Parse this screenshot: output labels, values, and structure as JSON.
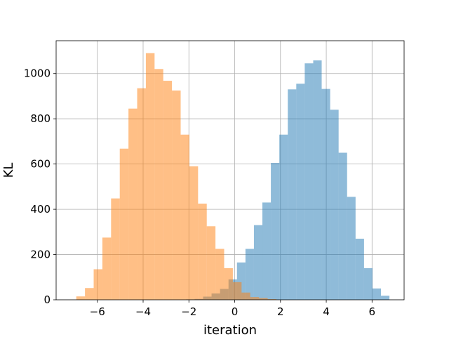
{
  "chart_data": {
    "type": "histogram",
    "title": "",
    "xlabel": "iteration",
    "ylabel": "KL",
    "xlim": [
      -7.8,
      7.4
    ],
    "ylim": [
      0,
      1145
    ],
    "xticks": [
      -6,
      -4,
      -2,
      0,
      2,
      4,
      6
    ],
    "yticks": [
      0,
      200,
      400,
      600,
      800,
      1000
    ],
    "grid": true,
    "legend": "none",
    "series": [
      {
        "color": "#1f77b4",
        "alpha": 0.5,
        "bins": [
          {
            "x0": -2.12,
            "x1": -1.75,
            "count": 2
          },
          {
            "x0": -1.75,
            "x1": -1.38,
            "count": 4
          },
          {
            "x0": -1.38,
            "x1": -1.01,
            "count": 14
          },
          {
            "x0": -1.01,
            "x1": -0.64,
            "count": 28
          },
          {
            "x0": -0.64,
            "x1": -0.27,
            "count": 48
          },
          {
            "x0": -0.27,
            "x1": 0.1,
            "count": 90
          },
          {
            "x0": 0.1,
            "x1": 0.47,
            "count": 165
          },
          {
            "x0": 0.47,
            "x1": 0.84,
            "count": 225
          },
          {
            "x0": 0.84,
            "x1": 1.21,
            "count": 330
          },
          {
            "x0": 1.21,
            "x1": 1.58,
            "count": 430
          },
          {
            "x0": 1.58,
            "x1": 1.95,
            "count": 605
          },
          {
            "x0": 1.95,
            "x1": 2.32,
            "count": 730
          },
          {
            "x0": 2.32,
            "x1": 2.69,
            "count": 930
          },
          {
            "x0": 2.69,
            "x1": 3.06,
            "count": 955
          },
          {
            "x0": 3.06,
            "x1": 3.43,
            "count": 1045
          },
          {
            "x0": 3.43,
            "x1": 3.8,
            "count": 1058
          },
          {
            "x0": 3.8,
            "x1": 4.17,
            "count": 932
          },
          {
            "x0": 4.17,
            "x1": 4.54,
            "count": 840
          },
          {
            "x0": 4.54,
            "x1": 4.91,
            "count": 650
          },
          {
            "x0": 4.91,
            "x1": 5.28,
            "count": 455
          },
          {
            "x0": 5.28,
            "x1": 5.65,
            "count": 270
          },
          {
            "x0": 5.65,
            "x1": 6.02,
            "count": 140
          },
          {
            "x0": 6.02,
            "x1": 6.39,
            "count": 50
          },
          {
            "x0": 6.39,
            "x1": 6.76,
            "count": 18
          }
        ]
      },
      {
        "color": "#ff7f0e",
        "alpha": 0.5,
        "bins": [
          {
            "x0": -6.92,
            "x1": -6.54,
            "count": 15
          },
          {
            "x0": -6.54,
            "x1": -6.16,
            "count": 52
          },
          {
            "x0": -6.16,
            "x1": -5.78,
            "count": 135
          },
          {
            "x0": -5.78,
            "x1": -5.4,
            "count": 275
          },
          {
            "x0": -5.4,
            "x1": -5.02,
            "count": 448
          },
          {
            "x0": -5.02,
            "x1": -4.64,
            "count": 668
          },
          {
            "x0": -4.64,
            "x1": -4.26,
            "count": 845
          },
          {
            "x0": -4.26,
            "x1": -3.88,
            "count": 935
          },
          {
            "x0": -3.88,
            "x1": -3.5,
            "count": 1090
          },
          {
            "x0": -3.5,
            "x1": -3.12,
            "count": 1020
          },
          {
            "x0": -3.12,
            "x1": -2.74,
            "count": 968
          },
          {
            "x0": -2.74,
            "x1": -2.36,
            "count": 925
          },
          {
            "x0": -2.36,
            "x1": -1.98,
            "count": 730
          },
          {
            "x0": -1.98,
            "x1": -1.6,
            "count": 590
          },
          {
            "x0": -1.6,
            "x1": -1.22,
            "count": 425
          },
          {
            "x0": -1.22,
            "x1": -0.84,
            "count": 325
          },
          {
            "x0": -0.84,
            "x1": -0.46,
            "count": 225
          },
          {
            "x0": -0.46,
            "x1": -0.08,
            "count": 140
          },
          {
            "x0": -0.08,
            "x1": 0.3,
            "count": 78
          },
          {
            "x0": 0.3,
            "x1": 0.68,
            "count": 32
          },
          {
            "x0": 0.68,
            "x1": 1.06,
            "count": 12
          },
          {
            "x0": 1.06,
            "x1": 1.44,
            "count": 8
          },
          {
            "x0": 1.44,
            "x1": 1.82,
            "count": 3
          }
        ]
      }
    ]
  }
}
